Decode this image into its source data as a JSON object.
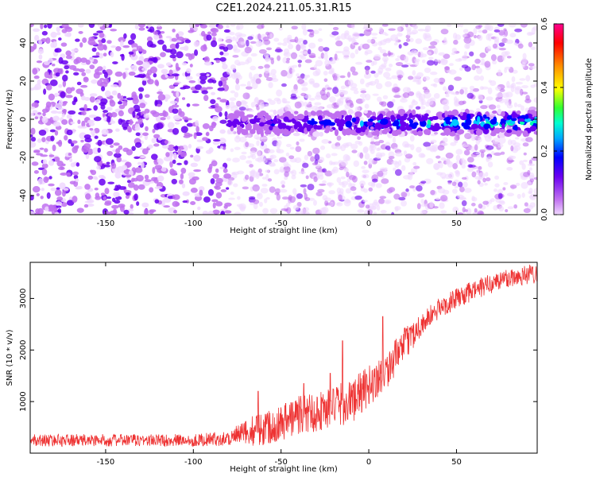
{
  "title": "C2E1.2024.211.05.31.R15",
  "chart_data": [
    {
      "type": "heatmap",
      "xlabel": "Height of straight line (km)",
      "ylabel": "Frequency (Hz)",
      "xlim": [
        -193,
        96
      ],
      "ylim": [
        -50,
        50
      ],
      "xticks": [
        -150,
        -100,
        -50,
        0,
        50
      ],
      "yticks": [
        -40,
        -20,
        0,
        20,
        40
      ],
      "colorbar": {
        "label": "Normalized spectral amplitude",
        "range": [
          0.0,
          0.6
        ],
        "ticks": [
          0.0,
          0.2,
          0.4,
          0.6
        ],
        "colors": [
          "#f0d8ff",
          "#c070f0",
          "#6a00f0",
          "#0000ff",
          "#00c8ff",
          "#00ffb0",
          "#40ff00",
          "#ffff00",
          "#ff9000",
          "#ff0000",
          "#ff0080"
        ]
      },
      "features": [
        {
          "x_range": [
            -193,
            -80
          ],
          "y_range": [
            -50,
            50
          ],
          "description_value": 0.08
        },
        {
          "x_range": [
            -80,
            96
          ],
          "y_center": -2,
          "y_halfwidth": 6,
          "peak_value": 0.3
        }
      ]
    },
    {
      "type": "line",
      "xlabel": "Height of straight line (km)",
      "ylabel": "SNR (10 * v/v)",
      "xlim": [
        -193,
        96
      ],
      "ylim": [
        0,
        3700
      ],
      "xticks": [
        -150,
        -100,
        -50,
        0,
        50
      ],
      "yticks": [
        1000,
        2000,
        3000
      ],
      "series": [
        {
          "color": "#ee3333",
          "trend_x": [
            -193,
            -150,
            -100,
            -80,
            -60,
            -50,
            -40,
            -30,
            -20,
            -10,
            0,
            10,
            20,
            30,
            40,
            50,
            60,
            70,
            80,
            96
          ],
          "trend_y": [
            250,
            250,
            250,
            290,
            500,
            600,
            750,
            800,
            900,
            1000,
            1300,
            1600,
            2100,
            2500,
            2800,
            3000,
            3150,
            3300,
            3400,
            3500
          ],
          "noise_y": [
            150,
            150,
            150,
            180,
            450,
            450,
            500,
            500,
            500,
            550,
            500,
            450,
            400,
            300,
            250,
            250,
            250,
            250,
            250,
            250
          ],
          "spikes": [
            {
              "x": -63,
              "y": 1200
            },
            {
              "x": -37,
              "y": 1350
            },
            {
              "x": -22,
              "y": 1550
            },
            {
              "x": -15,
              "y": 2180
            },
            {
              "x": 8,
              "y": 2650
            }
          ]
        }
      ]
    }
  ]
}
